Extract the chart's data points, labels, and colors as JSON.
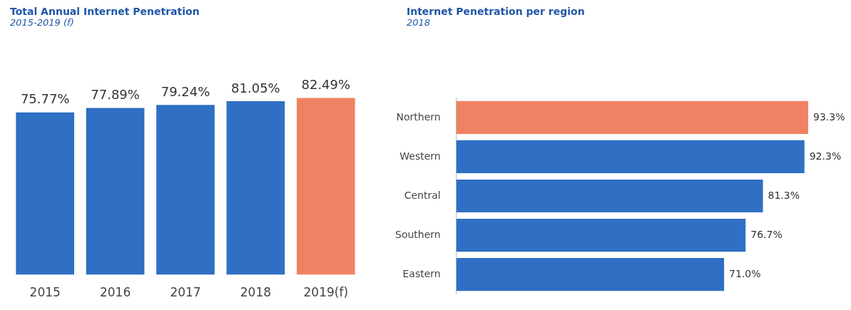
{
  "chart_data": [
    {
      "type": "bar",
      "title": "Total Annual Internet Penetration",
      "subtitle": "2015-2019 (f)",
      "categories": [
        "2015",
        "2016",
        "2017",
        "2018",
        "2019(f)"
      ],
      "values": [
        75.77,
        77.89,
        79.24,
        81.05,
        82.49
      ],
      "colors": [
        "#2f6fc4",
        "#2f6fc4",
        "#2f6fc4",
        "#2f6fc4",
        "#f08263"
      ],
      "value_labels": [
        "75.77%",
        "77.89%",
        "79.24%",
        "81.05%",
        "82.49%"
      ],
      "tick_labels": "x",
      "legend": false
    },
    {
      "type": "bar",
      "orientation": "horizontal",
      "title": "Internet Penetration per region",
      "subtitle": "2018",
      "categories": [
        "Northern",
        "Western",
        "Central",
        "Southern",
        "Eastern"
      ],
      "values": [
        93.3,
        92.3,
        81.3,
        76.7,
        71.0
      ],
      "colors": [
        "#f08263",
        "#2f6fc4",
        "#2f6fc4",
        "#2f6fc4",
        "#2f6fc4"
      ],
      "value_labels": [
        "93.3%",
        "92.3%",
        "81.3%",
        "76.7%",
        "71.0%"
      ],
      "xlim": [
        0,
        93.3
      ],
      "tick_labels": "y",
      "legend": false
    }
  ]
}
